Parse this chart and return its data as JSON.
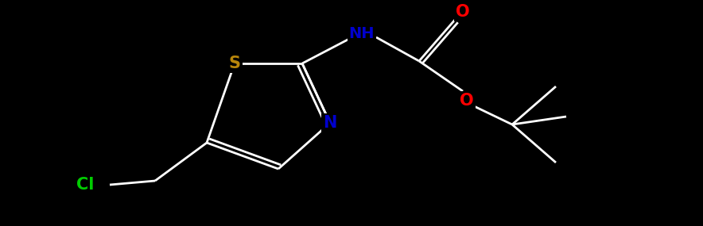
{
  "bg_color": "#000000",
  "atom_colors": {
    "C": "#ffffff",
    "N": "#0000cd",
    "O": "#ff0000",
    "S": "#b8860b",
    "Cl": "#00cc00",
    "H": "#ffffff"
  },
  "bond_color": "#ffffff",
  "figsize": [
    8.84,
    2.85
  ],
  "dpi": 100,
  "lw": 2.0,
  "fontsize": 14
}
